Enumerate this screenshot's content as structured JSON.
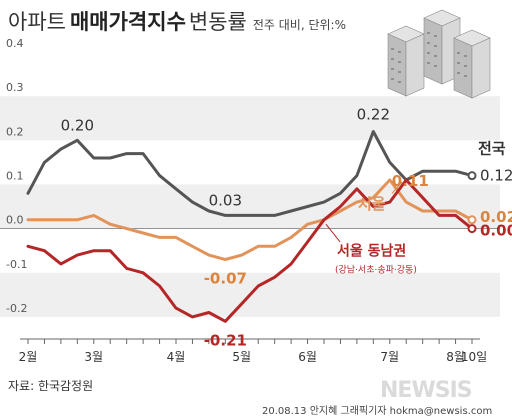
{
  "title": {
    "part1": "아파트",
    "part2": "매매가격지수",
    "part3": "변동률",
    "unit": "전주 대비, 단위:%"
  },
  "source": "자료: 한국감정원",
  "credit": "20.08.13 안지혜 그래픽기자 hokma@newsis.com",
  "watermark": "NEWSIS",
  "chart_data": {
    "type": "line",
    "x": [
      "2020-02-03",
      "2020-02-10",
      "2020-02-17",
      "2020-02-24",
      "2020-03-02",
      "2020-03-09",
      "2020-03-16",
      "2020-03-23",
      "2020-03-30",
      "2020-04-06",
      "2020-04-13",
      "2020-04-20",
      "2020-04-27",
      "2020-05-04",
      "2020-05-11",
      "2020-05-18",
      "2020-05-25",
      "2020-06-01",
      "2020-06-08",
      "2020-06-15",
      "2020-06-22",
      "2020-06-29",
      "2020-07-06",
      "2020-07-13",
      "2020-07-20",
      "2020-07-27",
      "2020-08-03",
      "2020-08-10"
    ],
    "xticks": [
      "2월",
      "3월",
      "4월",
      "5월",
      "6월",
      "7월",
      "8월",
      "10일"
    ],
    "ylim": [
      -0.25,
      0.4
    ],
    "yticks": [
      -0.2,
      -0.1,
      0.0,
      0.1,
      0.2,
      0.3,
      0.4
    ],
    "ytick_labels": [
      "-0.2",
      "-0.1",
      "0.0",
      "0.1",
      "0.2",
      "0.3",
      "0.4"
    ],
    "grid": "alternating horizontal bands",
    "series": [
      {
        "name": "전국",
        "color": "#555555",
        "values": [
          0.08,
          0.15,
          0.18,
          0.2,
          0.16,
          0.16,
          0.17,
          0.17,
          0.12,
          0.09,
          0.06,
          0.04,
          0.03,
          0.03,
          0.03,
          0.03,
          0.04,
          0.05,
          0.06,
          0.08,
          0.12,
          0.22,
          0.15,
          0.11,
          0.13,
          0.13,
          0.13,
          0.12
        ]
      },
      {
        "name": "서울",
        "color": "#e2935a",
        "values": [
          0.02,
          0.02,
          0.02,
          0.02,
          0.03,
          0.01,
          0.0,
          -0.01,
          -0.02,
          -0.02,
          -0.04,
          -0.06,
          -0.07,
          -0.06,
          -0.04,
          -0.04,
          -0.02,
          0.01,
          0.02,
          0.04,
          0.06,
          0.07,
          0.11,
          0.06,
          0.04,
          0.04,
          0.04,
          0.02
        ]
      },
      {
        "name": "서울 동남권",
        "color": "#b52727",
        "values": [
          -0.04,
          -0.05,
          -0.08,
          -0.06,
          -0.05,
          -0.05,
          -0.09,
          -0.1,
          -0.13,
          -0.18,
          -0.2,
          -0.19,
          -0.21,
          -0.17,
          -0.13,
          -0.11,
          -0.08,
          -0.03,
          0.02,
          0.05,
          0.09,
          0.05,
          0.06,
          0.11,
          0.07,
          0.03,
          0.03,
          0.0
        ]
      }
    ],
    "annotations": [
      {
        "series": 0,
        "index": 3,
        "text": "0.20"
      },
      {
        "series": 0,
        "index": 12,
        "text": "0.03"
      },
      {
        "series": 0,
        "index": 21,
        "text": "0.22"
      },
      {
        "series": 0,
        "index": 27,
        "text": "0.12"
      },
      {
        "series": 1,
        "index": 12,
        "text": "-0.07"
      },
      {
        "series": 1,
        "index": 22,
        "text": "0.11"
      },
      {
        "series": 1,
        "index": 27,
        "text": "0.02"
      },
      {
        "series": 2,
        "index": 12,
        "text": "-0.21"
      },
      {
        "series": 2,
        "index": 27,
        "text": "0.00"
      }
    ],
    "series_labels": [
      {
        "text": "전국",
        "series": 0
      },
      {
        "text": "서울",
        "series": 1
      },
      {
        "text": "서울 동남권",
        "series": 2
      },
      {
        "text": "(강남·서초·송파·강동)",
        "series": 2
      }
    ]
  }
}
